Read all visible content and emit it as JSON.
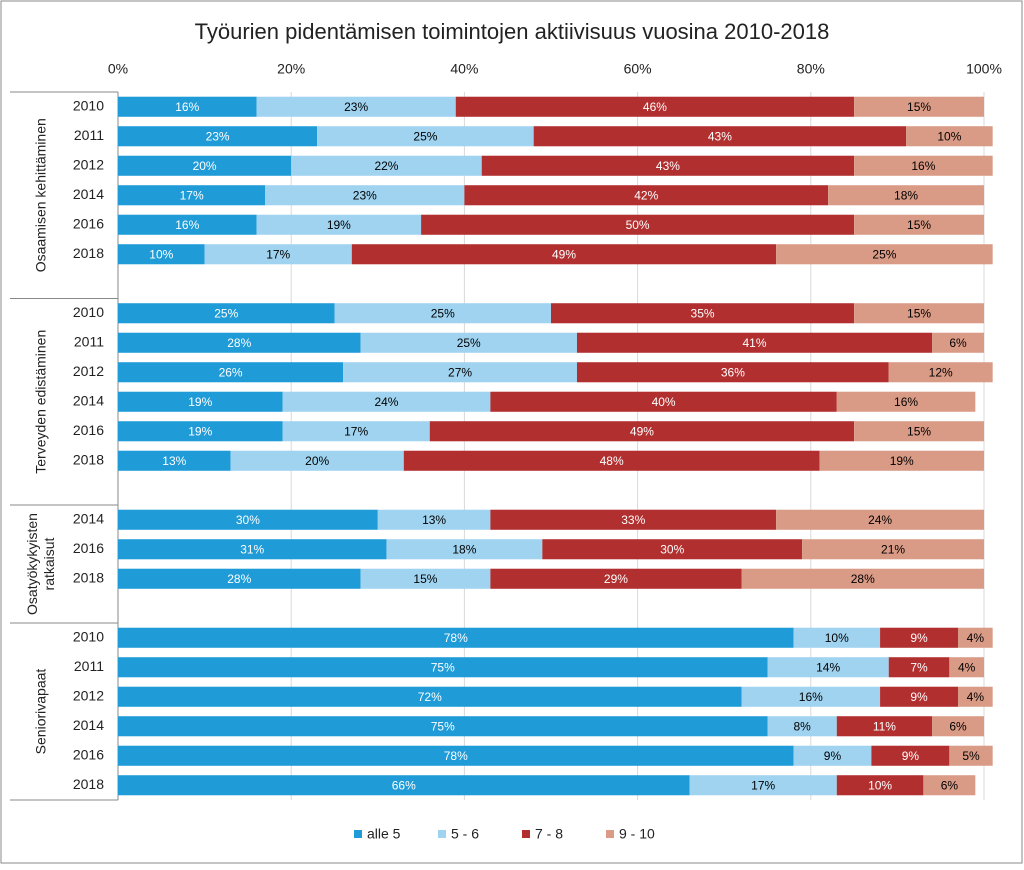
{
  "chart_data": {
    "type": "stacked-bar-horizontal",
    "title": "Työurien pidentämisen toimintojen aktiivisuus vuosina 2010-2018",
    "groups": [
      {
        "name": [
          "Osaamisen kehittäminen"
        ],
        "categories": [
          "2010",
          "2011",
          "2012",
          "2014",
          "2016",
          "2018"
        ]
      },
      {
        "name": [
          "Terveyden edistäminen"
        ],
        "categories": [
          "2010",
          "2011",
          "2012",
          "2014",
          "2016",
          "2018"
        ]
      },
      {
        "name": [
          "Osatyökykyisten",
          "ratkaisut"
        ],
        "categories": [
          "2014",
          "2016",
          "2018"
        ]
      },
      {
        "name": [
          "Seniorivapaat"
        ],
        "categories": [
          "2010",
          "2011",
          "2012",
          "2014",
          "2016",
          "2018"
        ]
      }
    ],
    "series": [
      {
        "name": "alle 5",
        "color": "#1f9bd7",
        "label_color": "#ffffff",
        "values": [
          16,
          23,
          20,
          17,
          16,
          10,
          25,
          28,
          26,
          19,
          19,
          13,
          30,
          31,
          28,
          78,
          75,
          72,
          75,
          78,
          66
        ],
        "value_labels": [
          "16%",
          "23%",
          "20%",
          "17%",
          "16%",
          "10%",
          "25%",
          "28%",
          "26%",
          "19%",
          "19%",
          "13%",
          "30%",
          "31%",
          "28%",
          "78%",
          "75%",
          "72%",
          "75%",
          "78%",
          "66%"
        ]
      },
      {
        "name": "5 - 6",
        "color": "#9fd3f0",
        "label_color": "#000000",
        "values": [
          23,
          25,
          22,
          23,
          19,
          17,
          25,
          25,
          27,
          24,
          17,
          20,
          13,
          18,
          15,
          10,
          14,
          16,
          8,
          9,
          17
        ],
        "value_labels": [
          "23%",
          "25%",
          "22%",
          "23%",
          "19%",
          "17%",
          "25%",
          "25%",
          "27%",
          "24%",
          "17%",
          "20%",
          "13%",
          "18%",
          "15%",
          "10%",
          "14%",
          "16%",
          "8%",
          "9%",
          "17%"
        ]
      },
      {
        "name": "7 - 8",
        "color": "#b22f2f",
        "label_color": "#ffffff",
        "values": [
          46,
          43,
          43,
          42,
          50,
          49,
          35,
          41,
          36,
          40,
          49,
          48,
          33,
          30,
          29,
          9,
          7,
          9,
          11,
          9,
          10
        ],
        "value_labels": [
          "46%",
          "43%",
          "43%",
          "42%",
          "50%",
          "49%",
          "35%",
          "41%",
          "36%",
          "40%",
          "49%",
          "48%",
          "33%",
          "30%",
          "29%",
          "9%",
          "7%",
          "9%",
          "11%",
          "9%",
          "10%"
        ]
      },
      {
        "name": "9 - 10",
        "color": "#d99a86",
        "label_color": "#000000",
        "values": [
          15,
          10,
          16,
          18,
          15,
          25,
          15,
          6,
          12,
          16,
          15,
          19,
          24,
          21,
          28,
          4,
          4,
          4,
          6,
          5,
          6
        ],
        "value_labels": [
          "15%",
          "10%",
          "16%",
          "18%",
          "15%",
          "25%",
          "15%",
          "6%",
          "12%",
          "16%",
          "15%",
          "19%",
          "24%",
          "21%",
          "28%",
          "4%",
          "4%",
          "4%",
          "6%",
          "5%",
          "6%"
        ]
      }
    ],
    "xlim": [
      0,
      100
    ],
    "xticks": [
      {
        "value": 0,
        "label": "0%"
      },
      {
        "value": 20,
        "label": "20%"
      },
      {
        "value": 40,
        "label": "40%"
      },
      {
        "value": 60,
        "label": "60%"
      },
      {
        "value": 80,
        "label": "80%"
      },
      {
        "value": 100,
        "label": "100%"
      }
    ],
    "grid": true,
    "legend": "bottom"
  }
}
